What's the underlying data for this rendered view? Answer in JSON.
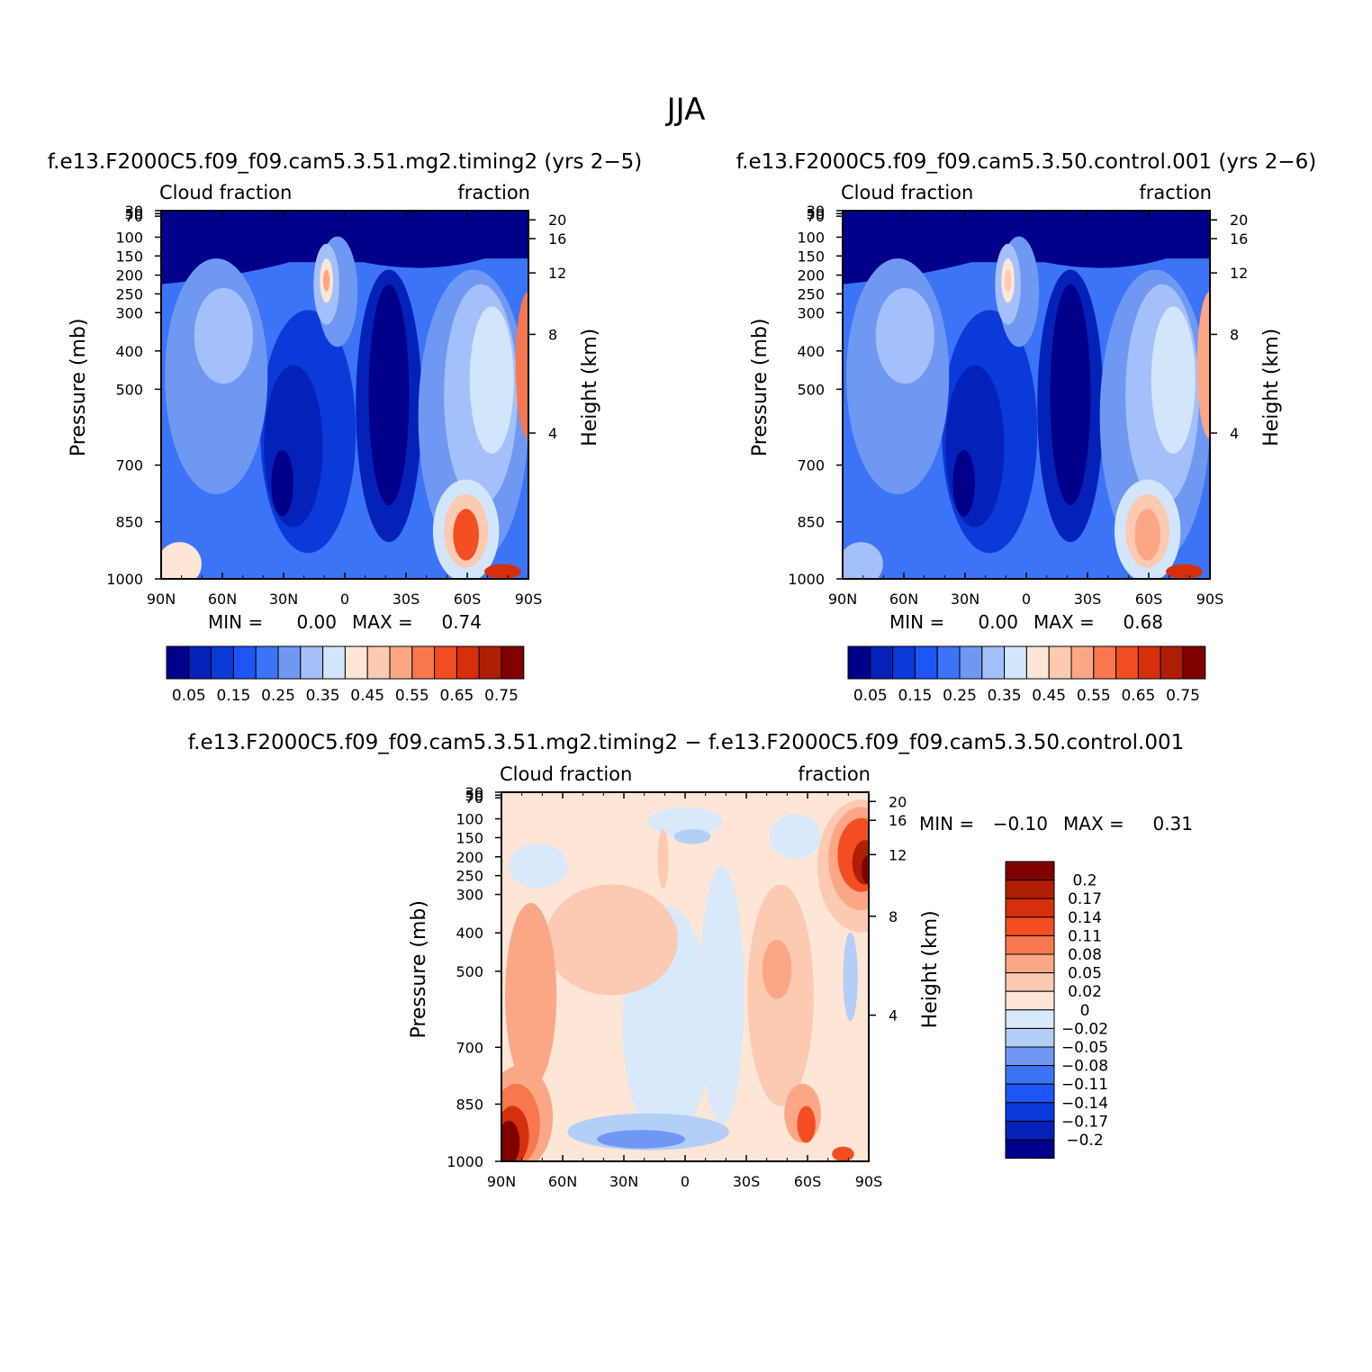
{
  "title": "JJA",
  "colors": {
    "abs_scale": [
      "#00008a",
      "#0422b8",
      "#0a3ad8",
      "#1e55f5",
      "#3c74f8",
      "#6f98f2",
      "#a4c0fa",
      "#d2e6fb",
      "#fde6d6",
      "#fcc9b1",
      "#fba786",
      "#f7784e",
      "#f24e22",
      "#d62f0c",
      "#b01e04",
      "#800000"
    ],
    "diff_scale": [
      "#00008a",
      "#0422b8",
      "#0a3ad8",
      "#1e55f5",
      "#3c74f8",
      "#6f98f2",
      "#b3cff6",
      "#d7e9fb",
      "#fde6d6",
      "#fcc9b1",
      "#fba786",
      "#f7784e",
      "#f24e22",
      "#d62f0c",
      "#b01e04",
      "#800000"
    ]
  },
  "chart_data": [
    {
      "type": "heatmap",
      "title": "f.e13.F2000C5.f09_f09.cam5.3.51.mg2.timing2 (yrs 2−5)",
      "left_string": "Cloud fraction",
      "right_string": "fraction",
      "ylabel": "Pressure (mb)",
      "ylabel_right": "Height (km)",
      "xticks": [
        "90N",
        "60N",
        "30N",
        "0",
        "30S",
        "60S",
        "90S"
      ],
      "yticks": [
        "30",
        "50",
        "70",
        "100",
        "150",
        "200",
        "250",
        "300",
        "400",
        "500",
        "700",
        "850",
        "1000"
      ],
      "yticks_right": [
        "20",
        "16",
        "12",
        "8",
        "4"
      ],
      "min_text": "MIN =",
      "min_value": "0.00",
      "max_text": "MAX =",
      "max_value": "0.74",
      "colorbar_labels": [
        "0.05",
        "0.15",
        "0.25",
        "0.35",
        "0.45",
        "0.55",
        "0.65",
        "0.75"
      ]
    },
    {
      "type": "heatmap",
      "title": "f.e13.F2000C5.f09_f09.cam5.3.50.control.001 (yrs 2−6)",
      "left_string": "Cloud fraction",
      "right_string": "fraction",
      "ylabel": "Pressure (mb)",
      "ylabel_right": "Height (km)",
      "xticks": [
        "90N",
        "60N",
        "30N",
        "0",
        "30S",
        "60S",
        "90S"
      ],
      "yticks": [
        "30",
        "50",
        "70",
        "100",
        "150",
        "200",
        "250",
        "300",
        "400",
        "500",
        "700",
        "850",
        "1000"
      ],
      "yticks_right": [
        "20",
        "16",
        "12",
        "8",
        "4"
      ],
      "min_text": "MIN =",
      "min_value": "0.00",
      "max_text": "MAX =",
      "max_value": "0.68",
      "colorbar_labels": [
        "0.05",
        "0.15",
        "0.25",
        "0.35",
        "0.45",
        "0.55",
        "0.65",
        "0.75"
      ]
    },
    {
      "type": "heatmap",
      "title": "f.e13.F2000C5.f09_f09.cam5.3.51.mg2.timing2 − f.e13.F2000C5.f09_f09.cam5.3.50.control.001",
      "left_string": "Cloud fraction",
      "right_string": "fraction",
      "ylabel": "Pressure (mb)",
      "ylabel_right": "Height (km)",
      "xticks": [
        "90N",
        "60N",
        "30N",
        "0",
        "30S",
        "60S",
        "90S"
      ],
      "yticks": [
        "30",
        "50",
        "70",
        "100",
        "150",
        "200",
        "250",
        "300",
        "400",
        "500",
        "700",
        "850",
        "1000"
      ],
      "yticks_right": [
        "20",
        "16",
        "12",
        "8",
        "4"
      ],
      "min_text": "MIN =",
      "min_value": "−0.10",
      "max_text": "MAX =",
      "max_value": "0.31",
      "colorbar_labels": [
        "0.2",
        "0.17",
        "0.14",
        "0.11",
        "0.08",
        "0.05",
        "0.02",
        "0",
        "−0.02",
        "−0.05",
        "−0.08",
        "−0.11",
        "−0.14",
        "−0.17",
        "−0.2"
      ]
    }
  ]
}
